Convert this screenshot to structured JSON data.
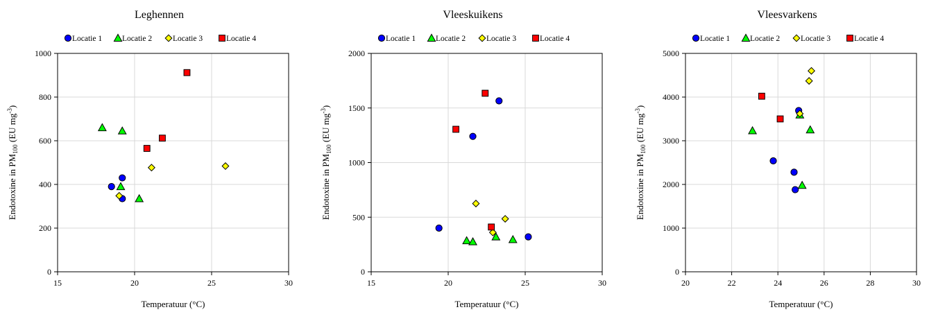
{
  "chart_data": [
    {
      "type": "scatter",
      "title": "Leghennen",
      "xlabel": "Temperatuur (°C)",
      "ylabel": {
        "prefix": "Endotoxine in PM",
        "sub": "100",
        "unit_open": " (EU mg",
        "sup": "-3",
        "unit_close": ")"
      },
      "xlim": [
        15,
        30
      ],
      "ylim": [
        0,
        1000
      ],
      "xticks": [
        15,
        20,
        25,
        30
      ],
      "yticks": [
        0,
        200,
        400,
        600,
        800,
        1000
      ],
      "grid": true,
      "legend_position": "top",
      "series": [
        {
          "name": "Locatie 1",
          "marker": "circle",
          "color": "#0000ff",
          "points": [
            [
              18.5,
              390
            ],
            [
              19.2,
              430
            ],
            [
              19.2,
              335
            ]
          ]
        },
        {
          "name": "Locatie 2",
          "marker": "triangle",
          "color": "#00ff00",
          "points": [
            [
              17.9,
              660
            ],
            [
              19.2,
              645
            ],
            [
              19.1,
              390
            ],
            [
              20.3,
              335
            ]
          ]
        },
        {
          "name": "Locatie 3",
          "marker": "diamond",
          "color": "#ffff00",
          "points": [
            [
              19.0,
              348
            ],
            [
              21.1,
              477
            ],
            [
              25.9,
              484
            ]
          ]
        },
        {
          "name": "Locatie 4",
          "marker": "square",
          "color": "#ff0000",
          "points": [
            [
              20.8,
              565
            ],
            [
              21.8,
              612
            ],
            [
              23.4,
              912
            ]
          ]
        }
      ]
    },
    {
      "type": "scatter",
      "title": "Vleeskuikens",
      "xlabel": "Temperatuur (°C)",
      "ylabel": {
        "prefix": "Endotoxine in PM",
        "sub": "100",
        "unit_open": " (EU mg",
        "sup": "-3",
        "unit_close": ")"
      },
      "xlim": [
        15,
        30
      ],
      "ylim": [
        0,
        2000
      ],
      "xticks": [
        15,
        20,
        25,
        30
      ],
      "yticks": [
        0,
        500,
        1000,
        1500,
        2000
      ],
      "grid": true,
      "legend_position": "top",
      "series": [
        {
          "name": "Locatie 1",
          "marker": "circle",
          "color": "#0000ff",
          "points": [
            [
              19.4,
              400
            ],
            [
              21.6,
              1240
            ],
            [
              23.3,
              1565
            ],
            [
              25.2,
              320
            ]
          ]
        },
        {
          "name": "Locatie 2",
          "marker": "triangle",
          "color": "#00ff00",
          "points": [
            [
              21.2,
              285
            ],
            [
              21.6,
              275
            ],
            [
              23.1,
              320
            ],
            [
              24.2,
              295
            ]
          ]
        },
        {
          "name": "Locatie 3",
          "marker": "diamond",
          "color": "#ffff00",
          "points": [
            [
              21.8,
              625
            ],
            [
              22.9,
              360
            ],
            [
              23.7,
              485
            ]
          ]
        },
        {
          "name": "Locatie 4",
          "marker": "square",
          "color": "#ff0000",
          "points": [
            [
              20.5,
              1305
            ],
            [
              22.4,
              1635
            ],
            [
              22.8,
              410
            ]
          ]
        }
      ]
    },
    {
      "type": "scatter",
      "title": "Vleesvarkens",
      "xlabel": "Temperatuur (°C)",
      "ylabel": {
        "prefix": "Endotoxine in PM",
        "sub": "100",
        "unit_open": " (EU mg",
        "sup": "-3",
        "unit_close": ")"
      },
      "xlim": [
        20,
        30
      ],
      "ylim": [
        0,
        5000
      ],
      "xticks": [
        20,
        22,
        24,
        26,
        28,
        30
      ],
      "yticks": [
        0,
        1000,
        2000,
        3000,
        4000,
        5000
      ],
      "grid": true,
      "legend_position": "top",
      "series": [
        {
          "name": "Locatie 1",
          "marker": "circle",
          "color": "#0000ff",
          "points": [
            [
              23.8,
              2540
            ],
            [
              24.7,
              2280
            ],
            [
              24.75,
              1880
            ],
            [
              24.9,
              3690
            ]
          ]
        },
        {
          "name": "Locatie 2",
          "marker": "triangle",
          "color": "#00ff00",
          "points": [
            [
              22.9,
              3230
            ],
            [
              24.95,
              3590
            ],
            [
              25.05,
              1980
            ],
            [
              25.4,
              3250
            ]
          ]
        },
        {
          "name": "Locatie 3",
          "marker": "diamond",
          "color": "#ffff00",
          "points": [
            [
              24.95,
              3620
            ],
            [
              25.35,
              4370
            ],
            [
              25.45,
              4600
            ]
          ]
        },
        {
          "name": "Locatie 4",
          "marker": "square",
          "color": "#ff0000",
          "points": [
            [
              23.3,
              4020
            ],
            [
              24.1,
              3500
            ]
          ]
        }
      ]
    }
  ]
}
